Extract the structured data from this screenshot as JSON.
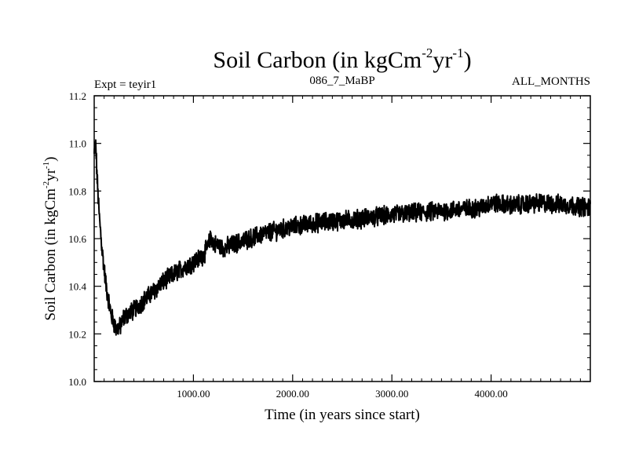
{
  "chart_data": {
    "type": "line",
    "title": {
      "main": "Soil Carbon (in kgCm",
      "exp1": "-2",
      "mid": "yr",
      "exp2": "-1",
      "close": ")"
    },
    "subtitle_left": "Expt = teyir1",
    "subtitle_center": "086_7_MaBP",
    "subtitle_right": "ALL_MONTHS",
    "xlabel": "Time (in years since start)",
    "ylabel": {
      "main": "Soil Carbon (in kgCm",
      "exp1": "-2",
      "mid": "yr",
      "exp2": "-1",
      "close": ")"
    },
    "xlim": [
      0,
      5000
    ],
    "ylim": [
      10.0,
      11.2
    ],
    "x_ticks": [
      1000,
      2000,
      3000,
      4000
    ],
    "x_tick_labels": [
      "1000.00",
      "2000.00",
      "3000.00",
      "4000.00"
    ],
    "y_ticks": [
      10.0,
      10.2,
      10.4,
      10.6,
      10.8,
      11.0,
      11.2
    ],
    "y_tick_labels": [
      "10.0",
      "10.2",
      "10.4",
      "10.6",
      "10.8",
      "11.0",
      "11.2"
    ],
    "x_minor_step": 100,
    "y_minor_step": 0.05,
    "series": [
      {
        "name": "Soil Carbon",
        "color": "#000000",
        "noise_amplitude": 0.035,
        "x": [
          0,
          15,
          30,
          50,
          80,
          120,
          170,
          220,
          260,
          300,
          400,
          500,
          600,
          700,
          800,
          900,
          1000,
          1100,
          1150,
          1180,
          1200,
          1300,
          1500,
          1700,
          2000,
          2300,
          2600,
          3000,
          3300,
          3600,
          3900,
          4000,
          4200,
          4500,
          4800,
          5000
        ],
        "y": [
          10.95,
          11.0,
          10.85,
          10.7,
          10.55,
          10.4,
          10.28,
          10.22,
          10.23,
          10.27,
          10.3,
          10.34,
          10.38,
          10.42,
          10.45,
          10.48,
          10.5,
          10.53,
          10.57,
          10.61,
          10.58,
          10.56,
          10.59,
          10.62,
          10.65,
          10.67,
          10.68,
          10.7,
          10.71,
          10.72,
          10.73,
          10.75,
          10.74,
          10.75,
          10.74,
          10.73
        ]
      }
    ]
  }
}
